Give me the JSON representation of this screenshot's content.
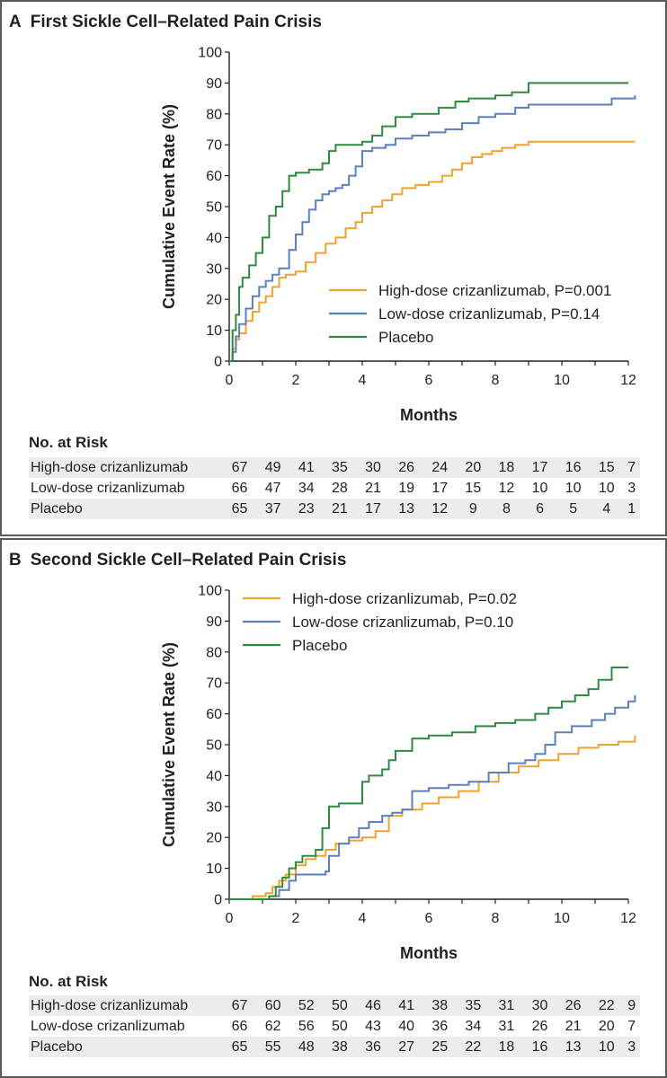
{
  "colors": {
    "high": "#f0a22e",
    "low": "#5b7fbf",
    "placebo": "#2e8b3e",
    "axis": "#231f20",
    "row_shade": "#ececec"
  },
  "panels": [
    {
      "letter": "A",
      "title": "First Sickle Cell–Related Pain Crisis",
      "risk_title": "No. at Risk",
      "risk_rows": [
        {
          "label": "High-dose crizanlizumab",
          "values": [
            "67",
            "49",
            "41",
            "35",
            "30",
            "26",
            "24",
            "20",
            "18",
            "17",
            "16",
            "15",
            "7"
          ]
        },
        {
          "label": "Low-dose crizanlizumab",
          "values": [
            "66",
            "47",
            "34",
            "28",
            "21",
            "19",
            "17",
            "15",
            "12",
            "10",
            "10",
            "10",
            "3"
          ]
        },
        {
          "label": "Placebo",
          "values": [
            "65",
            "37",
            "23",
            "21",
            "17",
            "13",
            "12",
            "9",
            "8",
            "6",
            "5",
            "4",
            "1"
          ]
        }
      ]
    },
    {
      "letter": "B",
      "title": "Second Sickle Cell–Related Pain Crisis",
      "risk_title": "No. at Risk",
      "risk_rows": [
        {
          "label": "High-dose crizanlizumab",
          "values": [
            "67",
            "60",
            "52",
            "50",
            "46",
            "41",
            "38",
            "35",
            "31",
            "30",
            "26",
            "22",
            "9"
          ]
        },
        {
          "label": "Low-dose crizanlizumab",
          "values": [
            "66",
            "62",
            "56",
            "50",
            "43",
            "40",
            "36",
            "34",
            "31",
            "26",
            "21",
            "20",
            "7"
          ]
        },
        {
          "label": "Placebo",
          "values": [
            "65",
            "55",
            "48",
            "38",
            "36",
            "27",
            "25",
            "22",
            "18",
            "16",
            "13",
            "10",
            "3"
          ]
        }
      ]
    }
  ],
  "chart_data": [
    {
      "type": "line",
      "title": "First Sickle Cell–Related Pain Crisis",
      "xlabel": "Months",
      "ylabel": "Cumulative Event Rate (%)",
      "xlim": [
        0,
        12
      ],
      "ylim": [
        0,
        100
      ],
      "xticks": [
        0,
        2,
        4,
        6,
        8,
        10,
        12
      ],
      "yticks": [
        0,
        10,
        20,
        30,
        40,
        50,
        60,
        70,
        80,
        90,
        100
      ],
      "legend_position": "lower-right",
      "series": [
        {
          "key": "high",
          "name": "High-dose crizanlizumab, P=0.001",
          "x": [
            0,
            0.1,
            0.2,
            0.3,
            0.5,
            0.7,
            0.9,
            1.1,
            1.3,
            1.5,
            1.7,
            2.0,
            2.3,
            2.6,
            2.9,
            3.2,
            3.5,
            3.8,
            4.0,
            4.3,
            4.6,
            4.9,
            5.2,
            5.6,
            6.0,
            6.4,
            6.7,
            7.0,
            7.3,
            7.6,
            7.9,
            8.2,
            8.6,
            9.0,
            10.0,
            11.0,
            12.2
          ],
          "y": [
            0,
            4,
            7,
            9,
            13,
            16,
            19,
            21,
            24,
            27,
            28,
            29,
            32,
            35,
            38,
            40,
            43,
            45,
            48,
            50,
            52,
            54,
            56,
            57,
            58,
            60,
            62,
            64,
            66,
            67,
            68,
            69,
            70,
            71,
            71,
            71,
            71
          ]
        },
        {
          "key": "low",
          "name": "Low-dose crizanlizumab, P=0.14",
          "x": [
            0,
            0.1,
            0.2,
            0.3,
            0.5,
            0.7,
            0.9,
            1.1,
            1.3,
            1.5,
            1.8,
            2.0,
            2.2,
            2.4,
            2.6,
            2.8,
            3.0,
            3.2,
            3.4,
            3.6,
            3.8,
            4.0,
            4.3,
            4.7,
            5.0,
            5.5,
            6.0,
            6.5,
            7.0,
            7.5,
            8.0,
            8.6,
            9.0,
            10.0,
            11.0,
            11.5,
            12.2
          ],
          "y": [
            0,
            3,
            8,
            12,
            17,
            21,
            24,
            26,
            28,
            30,
            36,
            41,
            45,
            49,
            52,
            54,
            55,
            56,
            57,
            60,
            63,
            68,
            69,
            70,
            72,
            73,
            74,
            75,
            77,
            79,
            80,
            82,
            83,
            83,
            83,
            85,
            86
          ]
        },
        {
          "key": "placebo",
          "name": "Placebo",
          "x": [
            0,
            0.1,
            0.2,
            0.3,
            0.4,
            0.6,
            0.8,
            1.0,
            1.2,
            1.4,
            1.6,
            1.8,
            2.0,
            2.4,
            2.8,
            3.0,
            3.2,
            3.6,
            4.0,
            4.3,
            4.6,
            5.0,
            5.5,
            6.0,
            6.3,
            6.8,
            7.2,
            7.6,
            8.0,
            8.5,
            9.0,
            10.0,
            11.0,
            12.0
          ],
          "y": [
            0,
            10,
            15,
            24,
            27,
            31,
            35,
            40,
            47,
            50,
            55,
            60,
            61,
            62,
            64,
            68,
            70,
            70,
            71,
            73,
            76,
            79,
            80,
            80,
            82,
            84,
            85,
            85,
            86,
            87,
            90,
            90,
            90,
            90
          ]
        }
      ]
    },
    {
      "type": "line",
      "title": "Second Sickle Cell–Related Pain Crisis",
      "xlabel": "Months",
      "ylabel": "Cumulative Event Rate (%)",
      "xlim": [
        0,
        12
      ],
      "ylim": [
        0,
        100
      ],
      "xticks": [
        0,
        2,
        4,
        6,
        8,
        10,
        12
      ],
      "yticks": [
        0,
        10,
        20,
        30,
        40,
        50,
        60,
        70,
        80,
        90,
        100
      ],
      "legend_position": "top-left",
      "series": [
        {
          "key": "high",
          "name": "High-dose crizanlizumab, P=0.02",
          "x": [
            0,
            0.7,
            1.1,
            1.3,
            1.5,
            1.7,
            2.0,
            2.3,
            2.6,
            2.9,
            3.2,
            3.6,
            4.0,
            4.4,
            4.8,
            5.2,
            5.8,
            6.3,
            6.9,
            7.5,
            8.1,
            8.7,
            9.3,
            9.9,
            10.5,
            11.1,
            11.7,
            12.2
          ],
          "y": [
            0,
            1,
            2,
            4,
            6,
            8,
            11,
            13,
            14,
            16,
            18,
            19,
            20,
            22,
            27,
            29,
            31,
            33,
            35,
            38,
            41,
            43,
            45,
            47,
            49,
            50,
            51,
            53
          ]
        },
        {
          "key": "low",
          "name": "Low-dose crizanlizumab, P=0.10",
          "x": [
            0,
            1.2,
            1.5,
            1.8,
            2.0,
            2.3,
            2.6,
            2.9,
            3.0,
            3.3,
            3.6,
            3.9,
            4.2,
            4.6,
            4.9,
            5.2,
            5.5,
            6.0,
            6.6,
            7.2,
            7.8,
            8.4,
            8.9,
            9.2,
            9.5,
            9.8,
            10.3,
            10.9,
            11.3,
            11.6,
            12.0,
            12.2
          ],
          "y": [
            0,
            1,
            3,
            6,
            8,
            8,
            8,
            9,
            14,
            18,
            20,
            23,
            25,
            27,
            28,
            29,
            35,
            36,
            37,
            38,
            41,
            44,
            45,
            47,
            50,
            54,
            56,
            58,
            60,
            62,
            64,
            66
          ]
        },
        {
          "key": "placebo",
          "name": "Placebo",
          "x": [
            0,
            1.2,
            1.4,
            1.6,
            1.8,
            2.0,
            2.2,
            2.6,
            2.8,
            3.0,
            3.3,
            4.0,
            4.2,
            4.6,
            4.8,
            5.0,
            5.5,
            6.0,
            6.7,
            7.4,
            8.0,
            8.6,
            9.2,
            9.6,
            10.0,
            10.4,
            10.8,
            11.1,
            11.5,
            12.0
          ],
          "y": [
            0,
            1,
            4,
            7,
            10,
            12,
            14,
            16,
            23,
            30,
            31,
            38,
            40,
            42,
            45,
            48,
            52,
            53,
            54,
            56,
            57,
            58,
            60,
            62,
            64,
            66,
            68,
            71,
            75,
            75
          ]
        }
      ]
    }
  ]
}
